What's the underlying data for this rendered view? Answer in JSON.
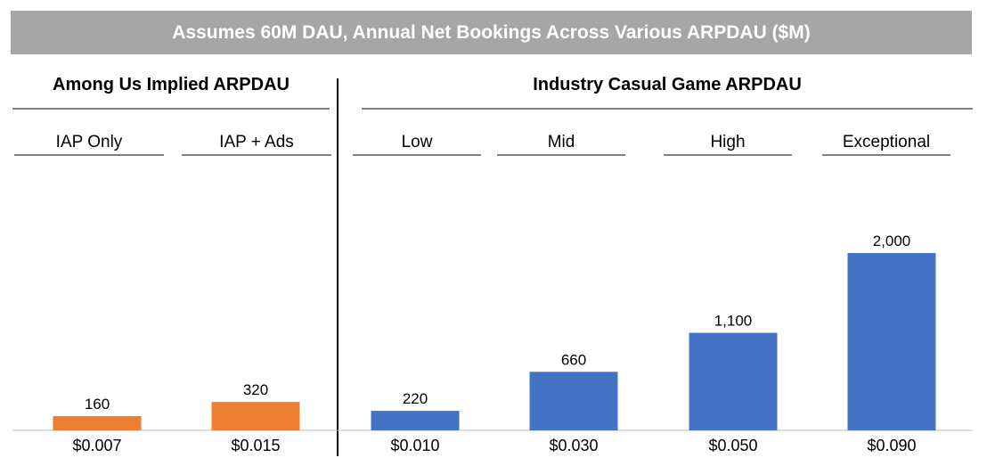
{
  "banner": {
    "title": "Assumes 60M DAU, Annual Net Bookings Across Various ARPDAU ($M)"
  },
  "sections": [
    {
      "title": "Among Us Implied ARPDAU"
    },
    {
      "title": "Industry Casual Game ARPDAU"
    }
  ],
  "colors": {
    "among_us": "#ed7d31",
    "industry": "#4472c4",
    "banner_bg": "#a6a6a6"
  },
  "chart_data": {
    "type": "bar",
    "title": "Assumes 60M DAU, Annual Net Bookings Across Various ARPDAU ($M)",
    "categories": [
      "IAP Only",
      "IAP + Ads",
      "Low",
      "Mid",
      "High",
      "Exceptional"
    ],
    "tick_labels": [
      "$0.007",
      "$0.015",
      "$0.010",
      "$0.030",
      "$0.050",
      "$0.090"
    ],
    "groups": [
      "Among Us Implied ARPDAU",
      "Among Us Implied ARPDAU",
      "Industry Casual Game ARPDAU",
      "Industry Casual Game ARPDAU",
      "Industry Casual Game ARPDAU",
      "Industry Casual Game ARPDAU"
    ],
    "values": [
      160,
      320,
      220,
      660,
      1100,
      2000
    ],
    "value_labels": [
      "160",
      "320",
      "220",
      "660",
      "1,100",
      "2,000"
    ],
    "ylim": [
      0,
      2000
    ],
    "grid": false,
    "legend": "none"
  }
}
